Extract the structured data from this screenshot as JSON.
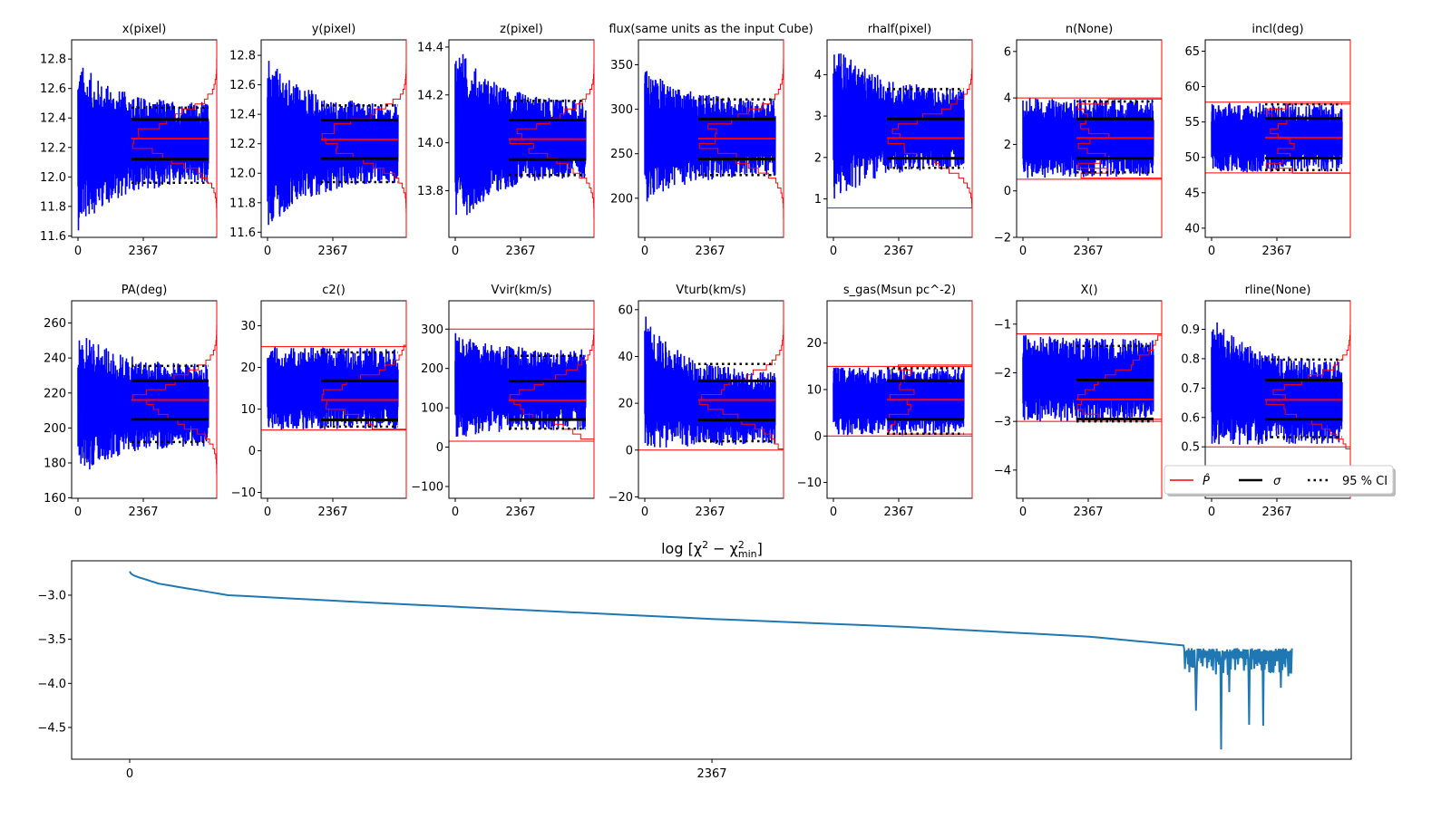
{
  "chart_data": [
    {
      "type": "line",
      "title": "x(pixel)",
      "xticks": [
        "0",
        "2367"
      ],
      "xlim": [
        -230,
        5030
      ],
      "ylim": [
        11.59,
        12.93
      ],
      "yticks": [
        "11.6",
        "11.8",
        "12.0",
        "12.2",
        "12.4",
        "12.6",
        "12.8"
      ],
      "best": 12.26,
      "sigma": [
        12.12,
        12.39
      ],
      "ci95": [
        11.96,
        12.47
      ],
      "bounds": [],
      "trace_start": [
        11.63,
        12.8
      ],
      "trace_end": [
        11.96,
        12.5
      ],
      "hist_shape": "gaussian"
    },
    {
      "type": "line",
      "title": "y(pixel)",
      "xticks": [
        "0",
        "2367"
      ],
      "xlim": [
        -230,
        5030
      ],
      "ylim": [
        11.565,
        12.905
      ],
      "yticks": [
        "11.6",
        "11.8",
        "12.0",
        "12.2",
        "12.4",
        "12.6",
        "12.8"
      ],
      "best": 12.23,
      "sigma": [
        12.1,
        12.36
      ],
      "ci95": [
        11.94,
        12.46
      ],
      "bounds": [],
      "trace_start": [
        11.58,
        12.82
      ],
      "trace_end": [
        11.94,
        12.46
      ],
      "hist_shape": "gaussian"
    },
    {
      "type": "line",
      "title": "z(pixel)",
      "xticks": [
        "0",
        "2367"
      ],
      "xlim": [
        -230,
        5030
      ],
      "ylim": [
        13.605,
        14.43
      ],
      "yticks": [
        "13.8",
        "14.0",
        "14.2",
        "14.4"
      ],
      "best": 14.015,
      "sigma": [
        13.93,
        14.095
      ],
      "ci95": [
        13.865,
        14.175
      ],
      "bounds": [],
      "trace_start": [
        13.63,
        14.43
      ],
      "trace_end": [
        13.86,
        14.17
      ],
      "hist_shape": "gaussian"
    },
    {
      "type": "line",
      "title": "flux(same units as the input Cube)",
      "xticks": [
        "0",
        "2367"
      ],
      "xlim": [
        -230,
        5030
      ],
      "ylim": [
        156,
        378
      ],
      "yticks": [
        "200",
        "250",
        "300",
        "350"
      ],
      "best": 267,
      "sigma": [
        244,
        289
      ],
      "ci95": [
        226,
        311
      ],
      "bounds": [],
      "trace_start": [
        192,
        348
      ],
      "trace_end": [
        226,
        310
      ],
      "hist_shape": "gaussian"
    },
    {
      "type": "line",
      "title": "rhalf(pixel)",
      "xticks": [
        "0",
        "2367"
      ],
      "xlim": [
        -230,
        5030
      ],
      "ylim": [
        0.07,
        4.84
      ],
      "yticks": [
        "1",
        "2",
        "3",
        "4"
      ],
      "best": 2.47,
      "sigma": [
        1.98,
        2.93
      ],
      "ci95": [
        1.75,
        3.65
      ],
      "bounds": [
        0.78
      ],
      "trace_start": [
        0.85,
        4.84
      ],
      "trace_end": [
        1.75,
        3.65
      ],
      "hist_shape": "gaussian"
    },
    {
      "type": "line",
      "title": "n(None)",
      "xticks": [
        "0",
        "2367"
      ],
      "xlim": [
        -230,
        5030
      ],
      "ylim": [
        -2,
        6.5
      ],
      "yticks": [
        "−2",
        "0",
        "2",
        "4",
        "6"
      ],
      "best": 2.28,
      "sigma": [
        1.4,
        3.1
      ],
      "ci95": [
        0.8,
        3.85
      ],
      "bounds": [
        0.5,
        4.0
      ],
      "trace_start": [
        0.5,
        4.0
      ],
      "trace_end": [
        0.6,
        3.95
      ],
      "hist_shape": "flat"
    },
    {
      "type": "line",
      "title": "incl(deg)",
      "xticks": [
        "0",
        "2367"
      ],
      "xlim": [
        -230,
        5030
      ],
      "ylim": [
        38.7,
        66.6
      ],
      "yticks": [
        "40",
        "45",
        "50",
        "55",
        "60",
        "65"
      ],
      "best": 52.8,
      "sigma": [
        49.9,
        55.5
      ],
      "ci95": [
        48.2,
        57.5
      ],
      "bounds": [
        47.8,
        57.8
      ],
      "trace_start": [
        47.8,
        57.8
      ],
      "trace_end": [
        47.9,
        57.7
      ],
      "hist_shape": "flat"
    },
    {
      "type": "line",
      "title": "PA(deg)",
      "xticks": [
        "0",
        "2367"
      ],
      "xlim": [
        -230,
        5030
      ],
      "ylim": [
        159.8,
        272.7
      ],
      "yticks": [
        "160",
        "180",
        "200",
        "220",
        "240",
        "260"
      ],
      "best": 216,
      "sigma": [
        205,
        227
      ],
      "ci95": [
        192,
        235.5
      ],
      "bounds": [],
      "trace_start": [
        170,
        258
      ],
      "trace_end": [
        190,
        236
      ],
      "hist_shape": "gaussian"
    },
    {
      "type": "line",
      "title": "c2()",
      "xticks": [
        "0",
        "2367"
      ],
      "xlim": [
        -230,
        5030
      ],
      "ylim": [
        -11.4,
        36
      ],
      "yticks": [
        "−10",
        "0",
        "10",
        "20",
        "30"
      ],
      "best": 12.2,
      "sigma": [
        7.4,
        16.8
      ],
      "ci95": [
        5.8,
        23.6
      ],
      "bounds": [
        5,
        25
      ],
      "trace_start": [
        5,
        25
      ],
      "trace_end": [
        5.2,
        24.8
      ],
      "hist_shape": "gaussian"
    },
    {
      "type": "line",
      "title": "Vvir(km/s)",
      "xticks": [
        "0",
        "2367"
      ],
      "xlim": [
        -230,
        5030
      ],
      "ylim": [
        -130,
        372
      ],
      "yticks": [
        "−100",
        "0",
        "100",
        "200",
        "300"
      ],
      "best": 119,
      "sigma": [
        70,
        168
      ],
      "ci95": [
        47,
        232
      ],
      "bounds": [
        15,
        300
      ],
      "trace_start": [
        20,
        290
      ],
      "trace_end": [
        45,
        250
      ],
      "hist_shape": "gaussian"
    },
    {
      "type": "line",
      "title": "Vturb(km/s)",
      "xticks": [
        "0",
        "2367"
      ],
      "xlim": [
        -230,
        5030
      ],
      "ylim": [
        -20.6,
        63.8
      ],
      "yticks": [
        "−20",
        "0",
        "20",
        "40",
        "60"
      ],
      "best": 21.4,
      "sigma": [
        12.8,
        29.6
      ],
      "ci95": [
        3.8,
        36.8
      ],
      "bounds": [
        0
      ],
      "trace_start": [
        0,
        58
      ],
      "trace_end": [
        2,
        33
      ],
      "hist_shape": "gaussian"
    },
    {
      "type": "line",
      "title": "s_gas(Msun pc^-2)",
      "xticks": [
        "0",
        "2367"
      ],
      "xlim": [
        -230,
        5030
      ],
      "ylim": [
        -13.4,
        29.1
      ],
      "yticks": [
        "−10",
        "0",
        "10",
        "20"
      ],
      "best": 7.8,
      "sigma": [
        3.6,
        11.9
      ],
      "ci95": [
        0.5,
        14.6
      ],
      "bounds": [
        0,
        15
      ],
      "trace_start": [
        0,
        15
      ],
      "trace_end": [
        0.2,
        14.9
      ],
      "hist_shape": "flat"
    },
    {
      "type": "line",
      "title": "X()",
      "xticks": [
        "0",
        "2367"
      ],
      "xlim": [
        -230,
        5030
      ],
      "ylim": [
        -4.58,
        -0.52
      ],
      "yticks": [
        "−4",
        "−3",
        "−2",
        "−1"
      ],
      "best": -2.55,
      "sigma": [
        -2.95,
        -2.15
      ],
      "ci95": [
        -3.0,
        -1.45
      ],
      "bounds": [
        -3.0,
        -1.2
      ],
      "trace_start": [
        -3.0,
        -1.2
      ],
      "trace_end": [
        -3.0,
        -1.3
      ],
      "hist_shape": "ramp"
    },
    {
      "type": "line",
      "title": "rline(None)",
      "xticks": [
        "0",
        "2367"
      ],
      "xlim": [
        -230,
        5030
      ],
      "ylim": [
        0.325,
        0.997
      ],
      "yticks": [
        "0.5",
        "0.6",
        "0.7",
        "0.8",
        "0.9"
      ],
      "best": 0.66,
      "sigma": [
        0.594,
        0.727
      ],
      "ci95": [
        0.533,
        0.797
      ],
      "bounds": [
        0.5
      ],
      "trace_start": [
        0.5,
        0.95
      ],
      "trace_end": [
        0.51,
        0.79
      ],
      "hist_shape": "gaussian"
    },
    {
      "type": "line",
      "title": "log  [χ² − χ²min]",
      "title_main": "log  [χ",
      "title_sup1": "2",
      "title_mid": " − χ",
      "title_sup2": "2",
      "title_sub": "min",
      "title_end": "]",
      "xticks": [
        "0",
        "2367"
      ],
      "xlim": [
        -236,
        4966
      ],
      "ylim": [
        -4.86,
        -2.61
      ],
      "yticks": [
        "−4.5",
        "−4.0",
        "−3.5",
        "−3.0"
      ],
      "color": "#1f77b4",
      "points": [
        [
          0,
          -2.73
        ],
        [
          40,
          -2.8
        ],
        [
          120,
          -2.87
        ],
        [
          400,
          -3.0
        ],
        [
          948,
          -3.08
        ],
        [
          2367,
          -3.27
        ],
        [
          3160,
          -3.36
        ],
        [
          3900,
          -3.47
        ],
        [
          4284,
          -3.57
        ]
      ],
      "noisy_segment": {
        "from": 4284,
        "to": 4727,
        "range": [
          -3.92,
          -3.6
        ]
      },
      "spikes": [
        [
          4333,
          -4.31
        ],
        [
          4437,
          -4.75
        ],
        [
          4550,
          -4.47
        ],
        [
          4608,
          -4.48
        ],
        [
          4470,
          -4.1
        ],
        [
          4680,
          -4.05
        ]
      ]
    }
  ],
  "legend": {
    "placement": "right, between rows",
    "entries": [
      {
        "label": "P̂",
        "color": "#ff0000",
        "style": "solid"
      },
      {
        "label": "σ",
        "color": "#000000",
        "style": "solid"
      },
      {
        "label": "95 % CI",
        "color": "#000000",
        "style": "dotted"
      }
    ]
  },
  "colors": {
    "trace": "#0000ff",
    "best": "#ff0000",
    "sigma": "#000000",
    "hist": "#ff0000"
  }
}
